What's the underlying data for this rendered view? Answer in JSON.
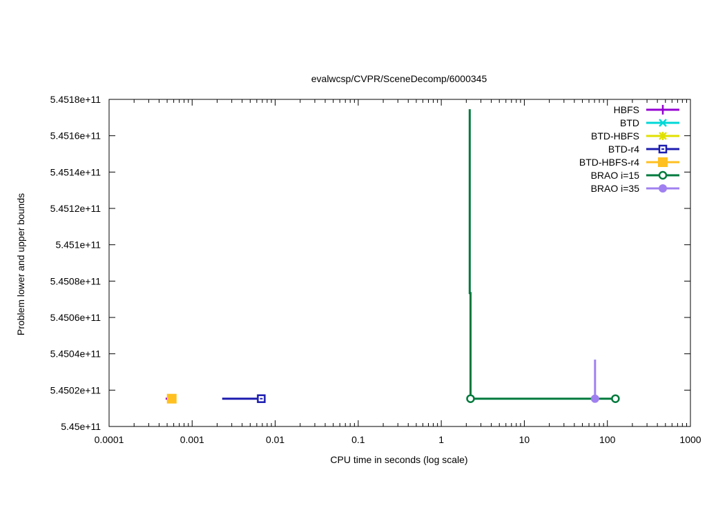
{
  "chart_data": {
    "type": "line",
    "title": "evalwcsp/CVPR/SceneDecomp/6000345",
    "xlabel": "CPU time in seconds (log scale)",
    "ylabel": "Problem lower and upper bounds",
    "xscale": "log",
    "xlim": [
      0.0001,
      1000
    ],
    "ylim": [
      545000000000,
      545180000000
    ],
    "x_ticks": [
      {
        "value": 0.0001,
        "label": "0.0001"
      },
      {
        "value": 0.001,
        "label": "0.001"
      },
      {
        "value": 0.01,
        "label": "0.01"
      },
      {
        "value": 0.1,
        "label": "0.1"
      },
      {
        "value": 1,
        "label": "1"
      },
      {
        "value": 10,
        "label": "10"
      },
      {
        "value": 100,
        "label": "100"
      },
      {
        "value": 1000,
        "label": "1000"
      }
    ],
    "y_ticks": [
      {
        "value": 545000000000,
        "label": "5.45e+11"
      },
      {
        "value": 545020000000,
        "label": "5.4502e+11"
      },
      {
        "value": 545040000000,
        "label": "5.4504e+11"
      },
      {
        "value": 545060000000,
        "label": "5.4506e+11"
      },
      {
        "value": 545080000000,
        "label": "5.4508e+11"
      },
      {
        "value": 545100000000,
        "label": "5.451e+11"
      },
      {
        "value": 545120000000,
        "label": "5.4512e+11"
      },
      {
        "value": 545140000000,
        "label": "5.4514e+11"
      },
      {
        "value": 545160000000,
        "label": "5.4516e+11"
      },
      {
        "value": 545180000000,
        "label": "5.4518e+11"
      }
    ],
    "grid": false,
    "legend_position": "top-right",
    "series": [
      {
        "name": "HBFS",
        "color": "#9400d3",
        "marker": "plus",
        "points": [
          [
            0.00048,
            545015300000
          ],
          [
            0.00052,
            545015300000
          ]
        ]
      },
      {
        "name": "BTD",
        "color": "#00d8d8",
        "marker": "cross",
        "points": []
      },
      {
        "name": "BTD-HBFS",
        "color": "#e0e000",
        "marker": "star",
        "points": []
      },
      {
        "name": "BTD-r4",
        "color": "#1c1cb0",
        "marker": "open-square",
        "points": [
          [
            0.0023,
            545015300000
          ],
          [
            0.0068,
            545015300000
          ]
        ]
      },
      {
        "name": "BTD-HBFS-r4",
        "color": "#ffc020",
        "marker": "filled-square",
        "points": [
          [
            0.00052,
            545015300000
          ],
          [
            0.00062,
            545015300000
          ]
        ]
      },
      {
        "name": "BRAO i=15",
        "color": "#007a3d",
        "marker": "open-circle",
        "points": [
          [
            2.2,
            545174600000
          ],
          [
            2.2,
            545073400000
          ],
          [
            2.25,
            545073400000
          ],
          [
            2.25,
            545015300000
          ],
          [
            125,
            545015300000
          ]
        ]
      },
      {
        "name": "BRAO i=35",
        "color": "#a080f0",
        "marker": "filled-circle",
        "points": [
          [
            71,
            545036800000
          ],
          [
            71,
            545015300000
          ]
        ]
      }
    ]
  }
}
